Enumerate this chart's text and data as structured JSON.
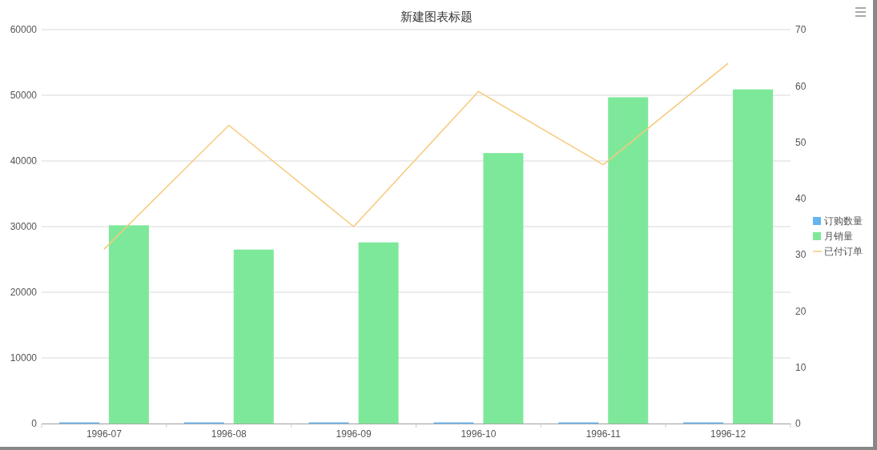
{
  "chart_data": {
    "type": "bar",
    "title": "新建图表标题",
    "categories": [
      "1996-07",
      "1996-08",
      "1996-09",
      "1996-10",
      "1996-11",
      "1996-12"
    ],
    "series": [
      {
        "name": "订购数量",
        "color": "#64b4f0",
        "values": [
          100,
          100,
          100,
          100,
          100,
          100
        ]
      },
      {
        "name": "月销量",
        "color": "#7ee89a",
        "values": [
          30200,
          26500,
          27600,
          41200,
          49700,
          50900
        ]
      },
      {
        "name": "已付订单",
        "type": "line",
        "axis": "y2",
        "color": "#f7c97a",
        "values": [
          31,
          53,
          35,
          59,
          46,
          64
        ]
      }
    ],
    "ylim": [
      0,
      60000
    ],
    "yticks": [
      0,
      10000,
      20000,
      30000,
      40000,
      50000,
      60000
    ],
    "y2lim": [
      0,
      70
    ],
    "y2ticks": [
      0,
      10,
      20,
      30,
      40,
      50,
      60,
      70
    ],
    "grid": "y",
    "legend": "right"
  }
}
